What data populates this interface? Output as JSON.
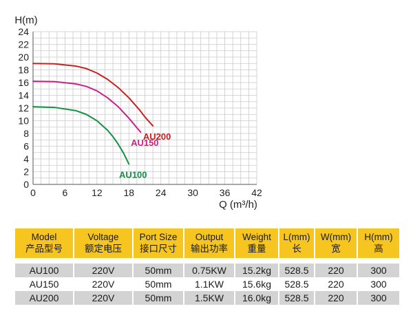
{
  "chart_data": {
    "type": "line",
    "xlabel": "Q (m³/h)",
    "ylabel": "H(m)",
    "xlim": [
      0,
      42
    ],
    "ylim": [
      0,
      24
    ],
    "xticks": [
      "0",
      "6",
      "12",
      "18",
      "24",
      "30",
      "36",
      "42"
    ],
    "yticks": [
      "0",
      "2",
      "4",
      "6",
      "8",
      "10",
      "12",
      "14",
      "16",
      "18",
      "20",
      "22",
      "24"
    ],
    "grid": true,
    "series": [
      {
        "name": "AU200",
        "color": "#c8201e",
        "x": [
          0,
          4,
          8,
          10,
          12,
          14,
          16,
          18,
          20,
          21,
          22.5
        ],
        "y": [
          19.0,
          18.95,
          18.6,
          18.2,
          17.5,
          16.5,
          15.2,
          13.6,
          11.7,
          10.6,
          9.2
        ]
      },
      {
        "name": "AU150",
        "color": "#cc1f86",
        "x": [
          0,
          4,
          8,
          10,
          12,
          14,
          16,
          18,
          20.2
        ],
        "y": [
          16.2,
          16.15,
          15.8,
          15.4,
          14.7,
          13.6,
          12.2,
          10.4,
          8.2
        ]
      },
      {
        "name": "AU100",
        "color": "#139043",
        "x": [
          0,
          4,
          8,
          10,
          12,
          14,
          15,
          16,
          17,
          18
        ],
        "y": [
          12.2,
          12.1,
          11.6,
          11.0,
          10.0,
          8.5,
          7.5,
          6.3,
          4.9,
          3.2
        ]
      }
    ]
  },
  "table": {
    "headers": [
      {
        "en": "Model",
        "cn": "产品型号"
      },
      {
        "en": "Voltage",
        "cn": "额定电压"
      },
      {
        "en": "Port Size",
        "cn": "接口尺寸"
      },
      {
        "en": "Output",
        "cn": "输出功率"
      },
      {
        "en": "Weight",
        "cn": "重量"
      },
      {
        "en": "L(mm)",
        "cn": "长"
      },
      {
        "en": "W(mm)",
        "cn": "宽"
      },
      {
        "en": "H(mm)",
        "cn": "高"
      }
    ],
    "rows": [
      [
        "AU100",
        "220V",
        "50mm",
        "0.75KW",
        "15.2kg",
        "528.5",
        "220",
        "300"
      ],
      [
        "AU150",
        "220V",
        "50mm",
        "1.1KW",
        "15.6kg",
        "528.5",
        "220",
        "300"
      ],
      [
        "AU200",
        "220V",
        "50mm",
        "1.5KW",
        "16.0kg",
        "528.5",
        "220",
        "300"
      ]
    ]
  }
}
